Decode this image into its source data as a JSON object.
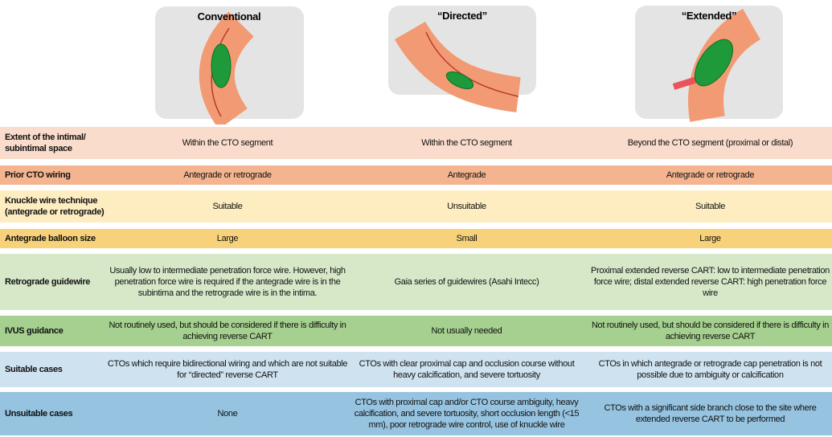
{
  "header": {
    "columns": [
      "Conventional",
      "“Directed”",
      "“Extended”"
    ]
  },
  "table": {
    "rows": [
      {
        "label": "Extent of the intimal/ subintimal space",
        "cells": [
          "Within the CTO segment",
          "Within the CTO segment",
          "Beyond the CTO segment (proximal or distal)"
        ]
      },
      {
        "label": "Prior CTO wiring",
        "cells": [
          "Antegrade or retrograde",
          "Antegrade",
          "Antegrade or retrograde"
        ]
      },
      {
        "label": "Knuckle wire technique (antegrade or retrograde)",
        "cells": [
          "Suitable",
          "Unsuitable",
          "Suitable"
        ]
      },
      {
        "label": "Antegrade balloon size",
        "cells": [
          "Large",
          "Small",
          "Large"
        ]
      },
      {
        "label": "Retrograde guidewire",
        "cells": [
          "Usually low to intermediate penetration force wire. However, high penetration force wire is required if the antegrade wire is in the subintima and the retrograde wire is in the intima.",
          "Gaia series of guidewires (Asahi Intecc)",
          "Proximal extended reverse CART: low to intermediate penetration force wire; distal extended reverse CART: high penetration force wire"
        ]
      },
      {
        "label": "IVUS guidance",
        "cells": [
          "Not routinely used, but should be considered if there is difficulty in achieving reverse CART",
          "Not usually needed",
          "Not routinely used, but should be considered if there is difficulty in achieving reverse CART"
        ]
      },
      {
        "label": "Suitable cases",
        "cells": [
          "CTOs which require bidirectional wiring and which are not suitable for “directed” reverse CART",
          "CTOs with clear proximal cap and occlusion course without heavy calcification, and severe tortuosity",
          "CTOs in which antegrade or retrograde cap penetration is not possible due to ambiguity or calcification"
        ]
      },
      {
        "label": "Unsuitable cases",
        "cells": [
          "None",
          "CTOs with proximal cap and/or CTO course ambiguity, heavy calcification, and severe tortuosity, short occlusion length (<15 mm), poor retrograde wire control, use of knuckle wire",
          "CTOs with a significant side branch close to the site where extended reverse CART to be performed"
        ]
      }
    ]
  }
}
